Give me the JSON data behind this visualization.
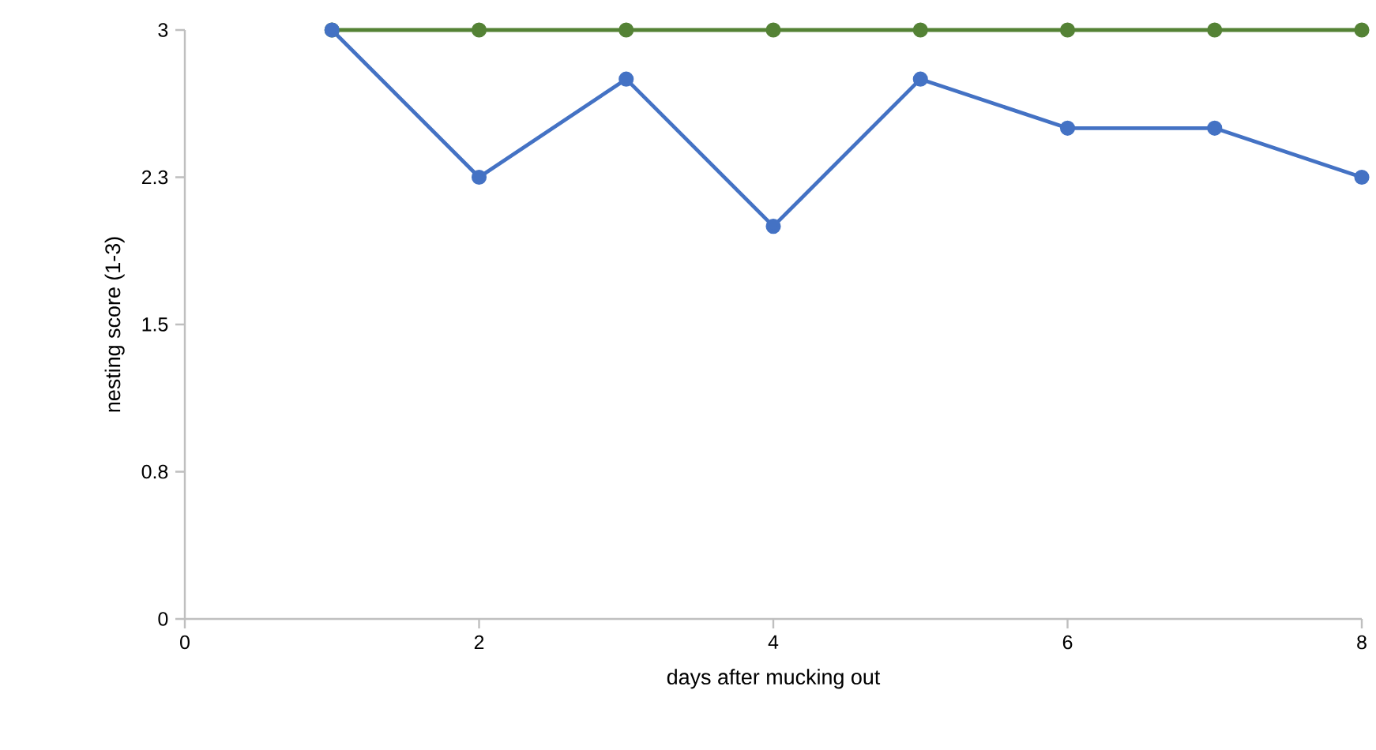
{
  "chart_data": {
    "type": "line",
    "xlabel": "days after mucking out",
    "ylabel": "nesting score (1-3)",
    "x": [
      1,
      2,
      3,
      4,
      5,
      6,
      7,
      8
    ],
    "series": [
      {
        "color": "#548235",
        "values": [
          3,
          3,
          3,
          3,
          3,
          3,
          3,
          3
        ]
      },
      {
        "color": "#4472c4",
        "values": [
          3,
          2.25,
          2.75,
          2.0,
          2.75,
          2.5,
          2.5,
          2.25
        ]
      }
    ],
    "xlim": [
      0,
      8
    ],
    "ylim": [
      0,
      3
    ],
    "xticks": [
      0,
      2,
      4,
      6,
      8
    ],
    "yticks": [
      0,
      {
        "value": 0.75,
        "label": "0.8"
      },
      1.5,
      {
        "value": 2.25,
        "label": "2.3"
      },
      3
    ],
    "marker": "circle",
    "line_style": "solid"
  }
}
